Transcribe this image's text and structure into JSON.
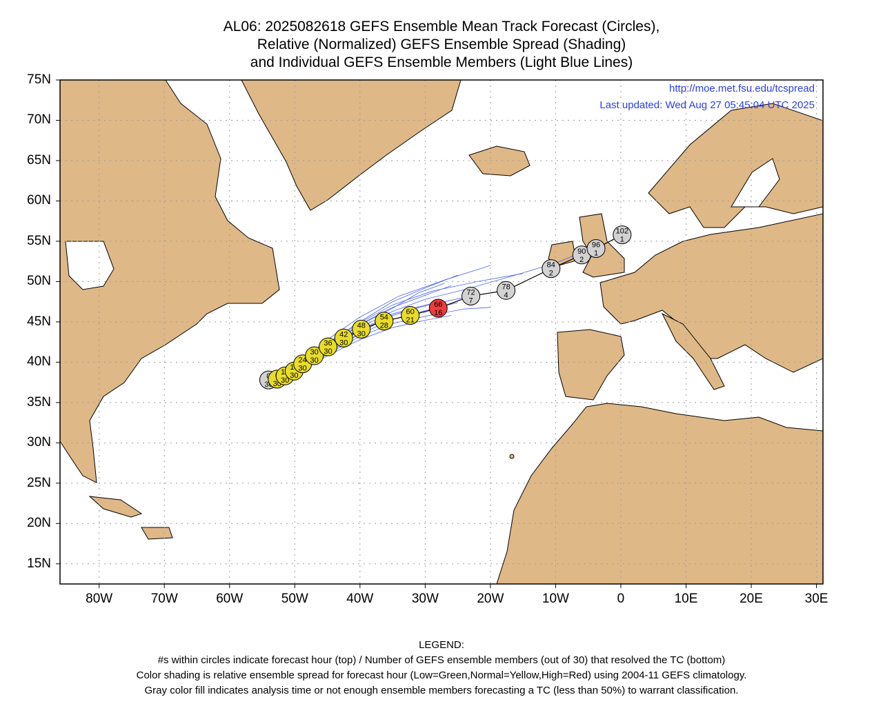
{
  "title": {
    "line1": "AL06: 2025082618 GEFS Ensemble Mean Track Forecast (Circles),",
    "line2": "Relative (Normalized) GEFS Ensemble Spread (Shading)",
    "line3": "and Individual GEFS Ensemble Members (Light Blue Lines)"
  },
  "credits": {
    "url": "http://moe.met.fsu.edu/tcspread",
    "updated": "Last updated: Wed Aug 27 05:45:04 UTC 2025"
  },
  "axes": {
    "lat_labels": [
      "75N",
      "70N",
      "65N",
      "60N",
      "55N",
      "50N",
      "45N",
      "40N",
      "35N",
      "30N",
      "25N",
      "20N",
      "15N"
    ],
    "lat_values": [
      75,
      70,
      65,
      60,
      55,
      50,
      45,
      40,
      35,
      30,
      25,
      20,
      15
    ],
    "lon_labels": [
      "80W",
      "70W",
      "60W",
      "50W",
      "40W",
      "30W",
      "20W",
      "10W",
      "0",
      "10E",
      "20E",
      "30E"
    ],
    "lon_values": [
      -80,
      -70,
      -60,
      -50,
      -40,
      -30,
      -20,
      -10,
      0,
      10,
      20,
      30
    ],
    "lat_range": [
      12.5,
      75
    ],
    "lon_range": [
      -86,
      31
    ],
    "grid": "dotted"
  },
  "colors": {
    "land": "#dfb887",
    "ocean": "#ffffff",
    "member_tracks": "#4a63f0",
    "mean_track": "#000000",
    "spread_normal": "#e8dc28",
    "spread_high": "#f03c3c",
    "insufficient": "#d2d2d2",
    "credit_text": "#2a3ee8"
  },
  "track": [
    {
      "hour": "0",
      "members": "30",
      "lon": -54.0,
      "lat": 37.8,
      "shade": "insufficient"
    },
    {
      "hour": "6",
      "members": "30",
      "lon": -52.7,
      "lat": 37.9,
      "shade": "normal"
    },
    {
      "hour": "12",
      "members": "30",
      "lon": -51.5,
      "lat": 38.3,
      "shade": "normal"
    },
    {
      "hour": "18",
      "members": "30",
      "lon": -50.1,
      "lat": 38.9,
      "shade": "normal"
    },
    {
      "hour": "24",
      "members": "30",
      "lon": -48.8,
      "lat": 39.8,
      "shade": "normal"
    },
    {
      "hour": "30",
      "members": "30",
      "lon": -47.0,
      "lat": 40.8,
      "shade": "normal"
    },
    {
      "hour": "36",
      "members": "30",
      "lon": -44.9,
      "lat": 41.9,
      "shade": "normal"
    },
    {
      "hour": "42",
      "members": "30",
      "lon": -42.5,
      "lat": 43.0,
      "shade": "normal"
    },
    {
      "hour": "48",
      "members": "30",
      "lon": -39.8,
      "lat": 44.1,
      "shade": "normal"
    },
    {
      "hour": "54",
      "members": "28",
      "lon": -36.3,
      "lat": 45.1,
      "shade": "normal"
    },
    {
      "hour": "60",
      "members": "21",
      "lon": -32.3,
      "lat": 45.8,
      "shade": "normal"
    },
    {
      "hour": "66",
      "members": "16",
      "lon": -28.0,
      "lat": 46.7,
      "shade": "high"
    },
    {
      "hour": "72",
      "members": "7",
      "lon": -23.0,
      "lat": 48.2,
      "shade": "insufficient"
    },
    {
      "hour": "78",
      "members": "4",
      "lon": -17.6,
      "lat": 48.9,
      "shade": "insufficient"
    },
    {
      "hour": "84",
      "members": "2",
      "lon": -10.7,
      "lat": 51.6,
      "shade": "insufficient"
    },
    {
      "hour": "90",
      "members": "2",
      "lon": -6.0,
      "lat": 53.3,
      "shade": "insufficient"
    },
    {
      "hour": "96",
      "members": "1",
      "lon": -3.8,
      "lat": 54.1,
      "shade": "insufficient"
    },
    {
      "hour": "102",
      "members": "1",
      "lon": 0.2,
      "lat": 55.8,
      "shade": "insufficient"
    }
  ],
  "member_tracks": [
    [
      [
        -54,
        37.8
      ],
      [
        -50,
        39.5
      ],
      [
        -45,
        42.8
      ],
      [
        -40,
        45.6
      ],
      [
        -34,
        48.2
      ],
      [
        -27,
        50.2
      ],
      [
        -20,
        52.0
      ]
    ],
    [
      [
        -54,
        37.8
      ],
      [
        -50,
        39.2
      ],
      [
        -45,
        42.4
      ],
      [
        -40,
        45.0
      ],
      [
        -35,
        47.5
      ],
      [
        -30,
        49.2
      ],
      [
        -25,
        50.8
      ]
    ],
    [
      [
        -54,
        37.8
      ],
      [
        -50,
        39.0
      ],
      [
        -45,
        42.0
      ],
      [
        -40,
        44.7
      ],
      [
        -35,
        46.8
      ],
      [
        -30,
        48.3
      ],
      [
        -26,
        49.5
      ]
    ],
    [
      [
        -54,
        37.8
      ],
      [
        -50,
        38.9
      ],
      [
        -45,
        41.7
      ],
      [
        -40,
        44.3
      ],
      [
        -35,
        46.3
      ],
      [
        -30,
        47.8
      ],
      [
        -24,
        49.0
      ],
      [
        -17,
        50.6
      ],
      [
        -10,
        52.3
      ],
      [
        -6,
        53.6
      ]
    ],
    [
      [
        -54,
        37.8
      ],
      [
        -50,
        38.7
      ],
      [
        -45,
        41.4
      ],
      [
        -40,
        43.9
      ],
      [
        -35,
        45.8
      ],
      [
        -30,
        47.0
      ],
      [
        -23,
        48.2
      ]
    ],
    [
      [
        -54,
        37.8
      ],
      [
        -50,
        38.6
      ],
      [
        -45,
        41.2
      ],
      [
        -40,
        43.5
      ],
      [
        -35,
        45.3
      ],
      [
        -30,
        46.4
      ],
      [
        -25,
        47.4
      ]
    ],
    [
      [
        -54,
        37.8
      ],
      [
        -50,
        38.5
      ],
      [
        -45,
        41.0
      ],
      [
        -40,
        43.2
      ],
      [
        -35,
        44.8
      ],
      [
        -30,
        45.7
      ],
      [
        -24,
        46.6
      ],
      [
        -20,
        46.8
      ]
    ],
    [
      [
        -54,
        37.8
      ],
      [
        -50,
        38.4
      ],
      [
        -45,
        40.8
      ],
      [
        -40,
        42.8
      ],
      [
        -35,
        44.3
      ],
      [
        -30,
        45.2
      ],
      [
        -26,
        45.8
      ]
    ],
    [
      [
        -54,
        37.8
      ],
      [
        -50,
        38.8
      ],
      [
        -45,
        41.9
      ],
      [
        -40,
        44.6
      ],
      [
        -35,
        46.7
      ],
      [
        -31,
        48.6
      ],
      [
        -27,
        49.8
      ]
    ],
    [
      [
        -54,
        37.8
      ],
      [
        -50,
        39.1
      ],
      [
        -45,
        42.2
      ],
      [
        -40,
        44.9
      ],
      [
        -35,
        47.1
      ],
      [
        -29,
        48.8
      ],
      [
        -22,
        50.0
      ],
      [
        -15,
        51.0
      ]
    ],
    [
      [
        -54,
        37.8
      ],
      [
        -50,
        38.6
      ],
      [
        -45,
        41.5
      ],
      [
        -40,
        44.0
      ],
      [
        -35,
        46.0
      ],
      [
        -28,
        47.5
      ]
    ],
    [
      [
        -54,
        37.8
      ],
      [
        -50,
        38.5
      ],
      [
        -45,
        41.1
      ],
      [
        -40,
        43.6
      ],
      [
        -36,
        45.5
      ],
      [
        -31,
        46.9
      ]
    ]
  ],
  "legend": {
    "heading": "LEGEND:",
    "line1": "#s within circles indicate forecast hour (top) / Number of GEFS ensemble members (out of 30) that resolved the TC (bottom)",
    "line2": "Color shading is relative ensemble spread for forecast hour (Low=Green,Normal=Yellow,High=Red) using 2004-11 GEFS climatology.",
    "line3": "Gray color fill indicates analysis time or not enough ensemble members forecasting a TC (less than 50%) to warrant classification."
  }
}
